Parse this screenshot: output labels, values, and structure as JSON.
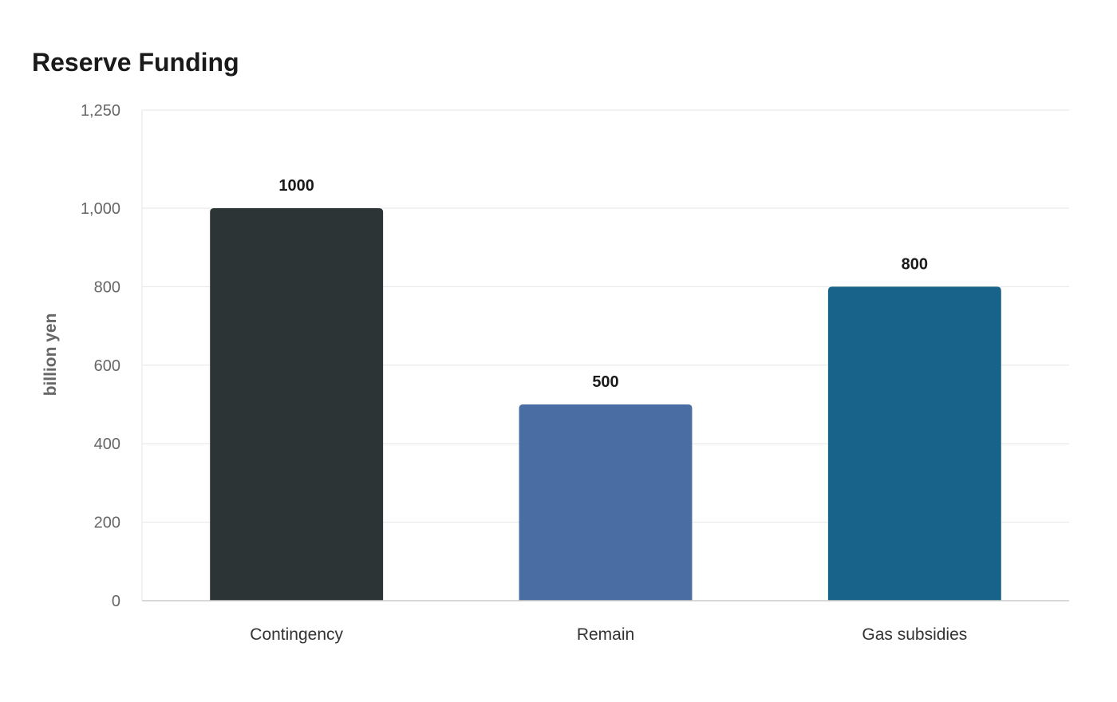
{
  "chart_data": {
    "type": "bar",
    "title": "Reserve Funding",
    "ylabel": "billion yen",
    "xlabel": "",
    "categories": [
      "Contingency",
      "Remain",
      "Gas subsidies"
    ],
    "values": [
      1000,
      500,
      800
    ],
    "data_labels": [
      "1000",
      "500",
      "800"
    ],
    "colors": [
      "#2d3436",
      "#4a6ea3",
      "#176389"
    ],
    "ylim": [
      0,
      1250
    ],
    "yticks": [
      0,
      200,
      400,
      600,
      800,
      1000,
      1250
    ],
    "ytick_labels": [
      "0",
      "200",
      "400",
      "600",
      "800",
      "1,000",
      "1,250"
    ],
    "grid": true,
    "legend": "none"
  }
}
